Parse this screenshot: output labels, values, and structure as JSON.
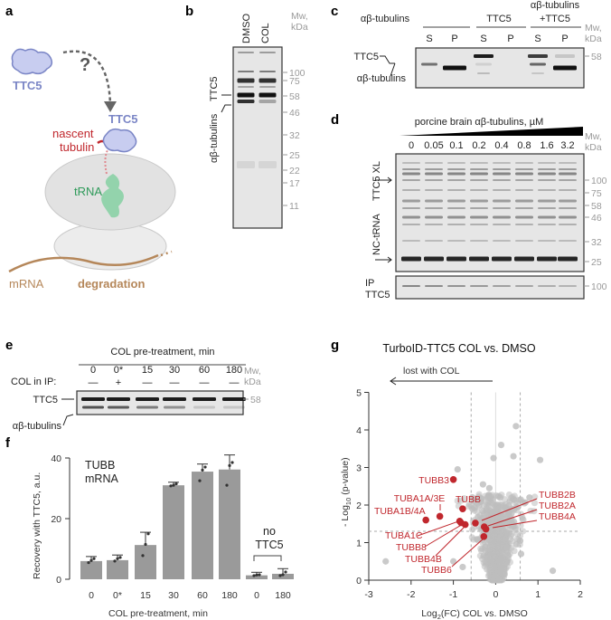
{
  "panel_labels": [
    "a",
    "b",
    "c",
    "d",
    "e",
    "f",
    "g"
  ],
  "panel_a": {
    "ttc5_free": "TTC5",
    "question": "?",
    "nascent_tubulin": [
      "nascent",
      "tubulin"
    ],
    "ttc5_bound": "TTC5",
    "trna": "tRNA",
    "mrna": "mRNA",
    "degradation": "degradation",
    "colors": {
      "ttc5": "#7b86c6",
      "nascent": "#c0272d",
      "trna": "#3fae6b",
      "mrna": "#b5875a"
    }
  },
  "panel_b": {
    "lanes": [
      "DMSO",
      "COL"
    ],
    "mw_header": [
      "Mw,",
      "kDa"
    ],
    "markers": [
      "100",
      "75",
      "58",
      "46",
      "32",
      "25",
      "22",
      "17",
      "11"
    ],
    "band_labels": [
      "TTC5",
      "αβ-tubulins"
    ]
  },
  "panel_c": {
    "groups": [
      "αβ-tubulins",
      "TTC5",
      "αβ-tubulins",
      "+TTC5"
    ],
    "fractions": [
      "S",
      "P",
      "S",
      "P",
      "S",
      "P"
    ],
    "mw_header": [
      "Mw,",
      "kDa"
    ],
    "markers": [
      "58"
    ],
    "band_labels": [
      "TTC5",
      "αβ-tubulins"
    ]
  },
  "panel_d": {
    "title": "porcine brain αβ-tubulins, µM",
    "concentrations": [
      "0",
      "0.05",
      "0.1",
      "0.2",
      "0.4",
      "0.8",
      "1.6",
      "3.2"
    ],
    "mw_header": [
      "Mw,",
      "kDa"
    ],
    "markers": [
      "100",
      "75",
      "58",
      "46",
      "32",
      "25"
    ],
    "band_labels": [
      "TTC5 XL",
      "NC-tRNA"
    ],
    "ip_label": [
      "IP",
      "TTC5"
    ],
    "ip_marker": "100"
  },
  "panel_e": {
    "title": "COL pre-treatment, min",
    "times": [
      "0",
      "0*",
      "15",
      "30",
      "60",
      "180"
    ],
    "col_in_ip_label": "COL in IP:",
    "col_in_ip": [
      "—",
      "+",
      "—",
      "—",
      "—",
      "—"
    ],
    "mw_header": [
      "Mw,",
      "kDa"
    ],
    "markers": [
      "58"
    ],
    "band_labels": [
      "TTC5",
      "αβ-tubulins"
    ]
  },
  "chart_data": [
    {
      "panel": "f",
      "type": "bar",
      "title": "",
      "annotation": [
        "TUBB",
        "mRNA"
      ],
      "group_annotation": [
        "no",
        "TTC5"
      ],
      "categories": [
        "0",
        "0*",
        "15",
        "30",
        "60",
        "180",
        "0",
        "180"
      ],
      "values": [
        6.0,
        6.3,
        11.3,
        31.0,
        35.5,
        36.2,
        1.3,
        1.8
      ],
      "error_upper": [
        7.5,
        8.0,
        15.5,
        32.0,
        38.0,
        41.0,
        2.3,
        3.5
      ],
      "replicates": [
        [
          5.5,
          6.2,
          6.8
        ],
        [
          6.0,
          6.8,
          7.2
        ],
        [
          7.8,
          11.5,
          15.0
        ],
        [
          30.8,
          31.0,
          31.5
        ],
        [
          32.5,
          36.0,
          37.0
        ],
        [
          31.0,
          37.5,
          38.5
        ],
        [
          1.2,
          1.4,
          1.5
        ],
        [
          1.2,
          1.5,
          2.4
        ]
      ],
      "xlabel": "COL pre-treatment, min",
      "ylabel": "Recovery with TTC5, a.u.",
      "yticks": [
        "0",
        "20",
        "40"
      ],
      "ylim": [
        0,
        40
      ],
      "bar_color": "#9a9a9a"
    },
    {
      "panel": "g",
      "type": "scatter",
      "title": "TurboID-TTC5 COL vs. DMSO",
      "annotation": "lost with COL",
      "xlabel": "Log2(FC) COL vs. DMSO",
      "xlabel_parts": [
        "Log",
        "2",
        "(FC) COL vs. DMSO"
      ],
      "ylabel_parts": [
        "- Log",
        "10",
        " (p-value)"
      ],
      "xticks": [
        "-3",
        "-2",
        "-1",
        "0",
        "1",
        "2"
      ],
      "yticks": [
        "0",
        "1",
        "2",
        "3",
        "4",
        "5"
      ],
      "xlim": [
        -3,
        2
      ],
      "ylim": [
        0,
        5
      ],
      "thresholds": {
        "log2fc": [
          -0.58,
          0.58
        ],
        "neg_log10_p": 1.3
      },
      "highlight_color": "#c0272d",
      "background_color": "#bdbdbd",
      "highlighted": [
        {
          "name": "TUBB3",
          "x": -1.0,
          "y": 2.68
        },
        {
          "name": "TUBA1A/3E",
          "x": -1.32,
          "y": 1.7
        },
        {
          "name": "TUBA1B/4A",
          "x": -1.65,
          "y": 1.6
        },
        {
          "name": "TUBB",
          "x": -0.78,
          "y": 1.9
        },
        {
          "name": "TUBA1C",
          "x": -0.85,
          "y": 1.57
        },
        {
          "name": "TUBB8",
          "x": -0.82,
          "y": 1.53
        },
        {
          "name": "TUBB4B",
          "x": -0.72,
          "y": 1.48
        },
        {
          "name": "TUBB6",
          "x": -0.28,
          "y": 1.16
        },
        {
          "name": "TUBB2B",
          "x": -0.48,
          "y": 1.52
        },
        {
          "name": "TUBB2A",
          "x": -0.27,
          "y": 1.42
        },
        {
          "name": "TUBB4A",
          "x": -0.23,
          "y": 1.36
        }
      ],
      "outliers": [
        {
          "x": 0.48,
          "y": 4.1
        },
        {
          "x": 0.13,
          "y": 3.6
        },
        {
          "x": 0.42,
          "y": 3.3
        },
        {
          "x": -0.05,
          "y": 3.25
        },
        {
          "x": 1.05,
          "y": 3.2
        },
        {
          "x": -0.9,
          "y": 2.95
        },
        {
          "x": -2.6,
          "y": 0.5
        },
        {
          "x": 1.35,
          "y": 0.25
        },
        {
          "x": -1.0,
          "y": 0.5
        },
        {
          "x": -0.78,
          "y": 0.35
        },
        {
          "x": -0.55,
          "y": 1.9
        },
        {
          "x": 0.8,
          "y": 2.2
        },
        {
          "x": 0.6,
          "y": 0.7
        },
        {
          "x": 0.58,
          "y": 1.05
        },
        {
          "x": -0.3,
          "y": 2.55
        },
        {
          "x": -0.15,
          "y": 2.45
        }
      ]
    }
  ]
}
